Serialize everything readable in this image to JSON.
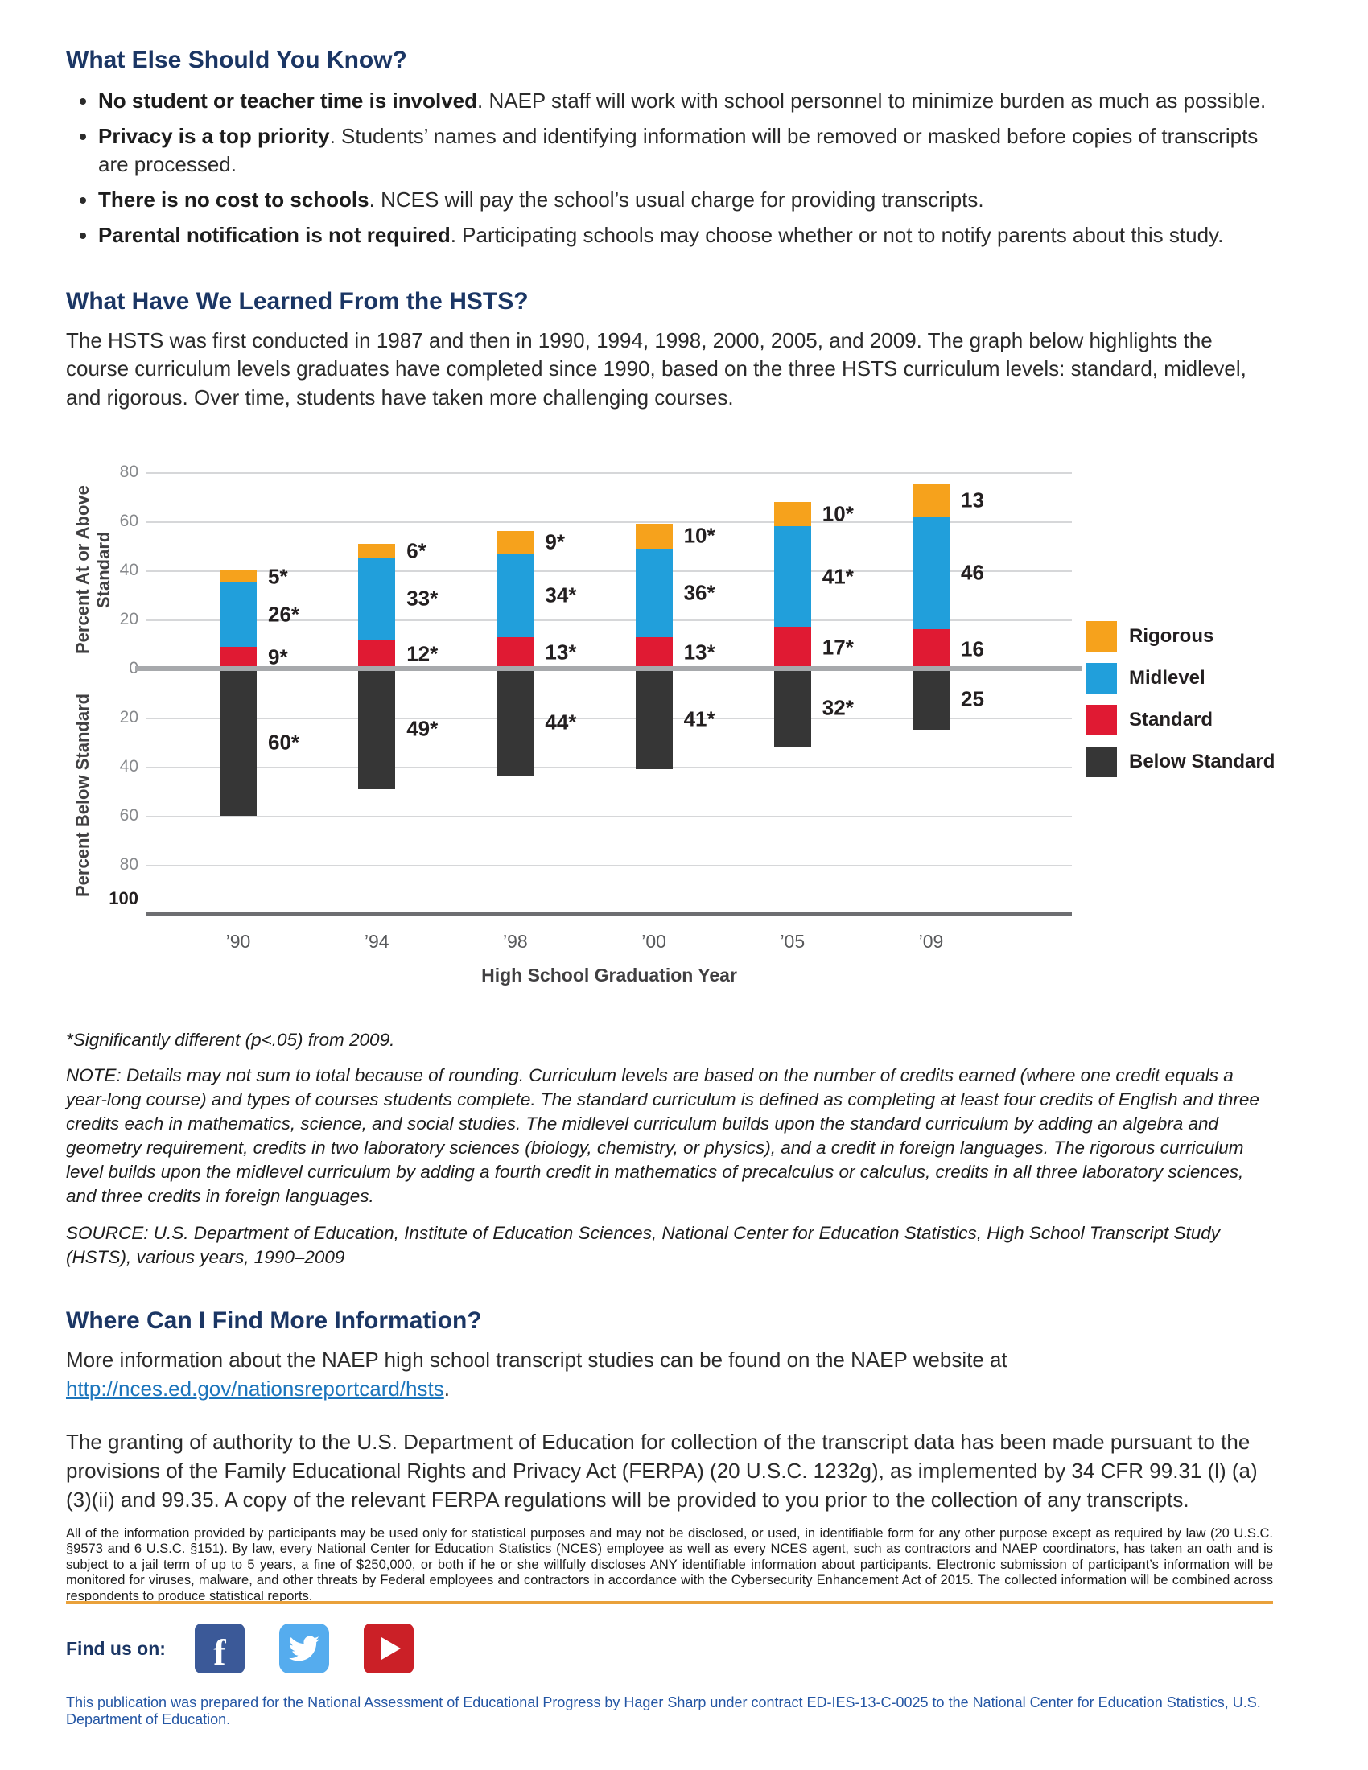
{
  "what_else": {
    "heading": "What Else Should You Know?",
    "bullets": [
      {
        "bold": "No student or teacher time is involved",
        "rest": ". NAEP staff will work with school personnel to minimize burden as much as possible."
      },
      {
        "bold": "Privacy is a top priority",
        "rest": ". Students’ names and identifying information will be removed or masked before copies of transcripts are processed."
      },
      {
        "bold": "There is no cost to schools",
        "rest": ". NCES will pay the school’s usual charge for providing transcripts."
      },
      {
        "bold": "Parental notification is not required",
        "rest": ". Participating schools may choose whether or not to notify parents about this study."
      }
    ]
  },
  "learned": {
    "heading": "What Have We Learned From the HSTS?",
    "paragraph": "The HSTS was first conducted in 1987 and then in 1990, 1994, 1998, 2000, 2005, and 2009. The graph below highlights the course curriculum levels graduates have completed since 1990, based on the three HSTS curriculum levels: standard, midlevel, and rigorous. Over time, students have taken more challenging courses."
  },
  "chart_data": {
    "type": "bar",
    "stacked": true,
    "diverging": true,
    "categories": [
      "’90",
      "’94",
      "’98",
      "’00",
      "’05",
      "’09"
    ],
    "xlabel": "High School Graduation Year",
    "ylabel_top": "Percent At or Above Standard",
    "ylabel_bottom": "Percent Below Standard",
    "y_ticks_above": [
      80,
      60,
      40,
      20,
      0
    ],
    "y_ticks_below": [
      20,
      40,
      60,
      80,
      100
    ],
    "ylim": [
      -100,
      80
    ],
    "grid": true,
    "legend_position": "right",
    "series": [
      {
        "name": "Rigorous",
        "color": "#F6A21C",
        "values": [
          5,
          6,
          9,
          10,
          10,
          13
        ],
        "labels": [
          "5*",
          "6*",
          "9*",
          "10*",
          "10*",
          "13"
        ]
      },
      {
        "name": "Midlevel",
        "color": "#219FDB",
        "values": [
          26,
          33,
          34,
          36,
          41,
          46
        ],
        "labels": [
          "26*",
          "33*",
          "34*",
          "36*",
          "41*",
          "46"
        ]
      },
      {
        "name": "Standard",
        "color": "#E01A33",
        "values": [
          9,
          12,
          13,
          13,
          17,
          16
        ],
        "labels": [
          "9*",
          "12*",
          "13*",
          "13*",
          "17*",
          "16"
        ]
      },
      {
        "name": "Below Standard",
        "color": "#363636",
        "values": [
          60,
          49,
          44,
          41,
          32,
          25
        ],
        "labels": [
          "60*",
          "49*",
          "44*",
          "41*",
          "32*",
          "25"
        ]
      }
    ]
  },
  "chart_notes": {
    "footnote": "*Significantly different (p<.05) from 2009.",
    "note": "NOTE: Details may not sum to total because of rounding. Curriculum levels are based on the number of credits earned (where one credit equals a year-long course) and types of courses students complete. The standard curriculum is defined as completing at least four credits of English and three credits each in mathematics, science, and social studies. The midlevel curriculum builds upon the standard curriculum by adding an algebra and geometry requirement, credits in two laboratory sciences (biology, chemistry, or physics), and a credit in foreign languages. The rigorous curriculum level builds upon the midlevel curriculum by adding a fourth credit in mathematics of precalculus or calculus, credits in all three laboratory sciences, and three credits in foreign languages.",
    "source": "SOURCE: U.S. Department of Education, Institute of Education Sciences, National Center for Education Statistics, High School Transcript Study (HSTS), various years, 1990–2009"
  },
  "more_info": {
    "heading": "Where Can I Find More Information?",
    "text_before_link": "More information about the NAEP high school transcript studies can be found on the NAEP website at ",
    "link": "http://nces.ed.gov/nationsreportcard/hsts",
    "text_after_link": "."
  },
  "ferpa": "The granting of authority to the U.S. Department of Education for collection of the transcript data has been made pursuant to the provisions of the Family Educational Rights and Privacy Act (FERPA) (20 U.S.C. 1232g), as implemented by 34 CFR 99.31 (l) (a)(3)(ii) and 99.35. A copy of the relevant FERPA regulations will be provided to you prior to the collection of any transcripts.",
  "fine_print": "All of the information provided by participants may be used only for statistical purposes and may not be disclosed, or used, in identifiable form for any other purpose except as required by law (20 U.S.C. §9573 and 6 U.S.C. §151). By law, every National Center for Education Statistics (NCES) employee as well as every NCES agent, such as contractors and NAEP coordinators, has taken an oath and is subject to a jail term of up to 5 years, a fine of $250,000, or both if he or she willfully discloses ANY identifiable information about participants. Electronic submission of participant’s information will be monitored for viruses, malware, and other threats by Federal employees and contractors in accordance with the Cybersecurity Enhancement Act of 2015. The collected information will be combined across respondents to produce statistical reports.",
  "find_us": {
    "label": "Find us on:",
    "icons": [
      "facebook-icon",
      "twitter-icon",
      "youtube-icon"
    ]
  },
  "footer": "This publication was prepared for the National Assessment of Educational Progress by Hager Sharp under contract ED-IES-13-C-0025 to the National Center for Education Statistics, U.S. Department of Education.",
  "colors": {
    "heading": "#1B3664",
    "link": "#1C75BC",
    "divider": "#E9A13B",
    "footer_text": "#2456A4",
    "facebook": "#3B5998",
    "twitter": "#55ACEE",
    "youtube": "#CB2027",
    "rigorous": "#F6A21C",
    "midlevel": "#219FDB",
    "standard": "#E01A33",
    "below_standard": "#363636"
  }
}
